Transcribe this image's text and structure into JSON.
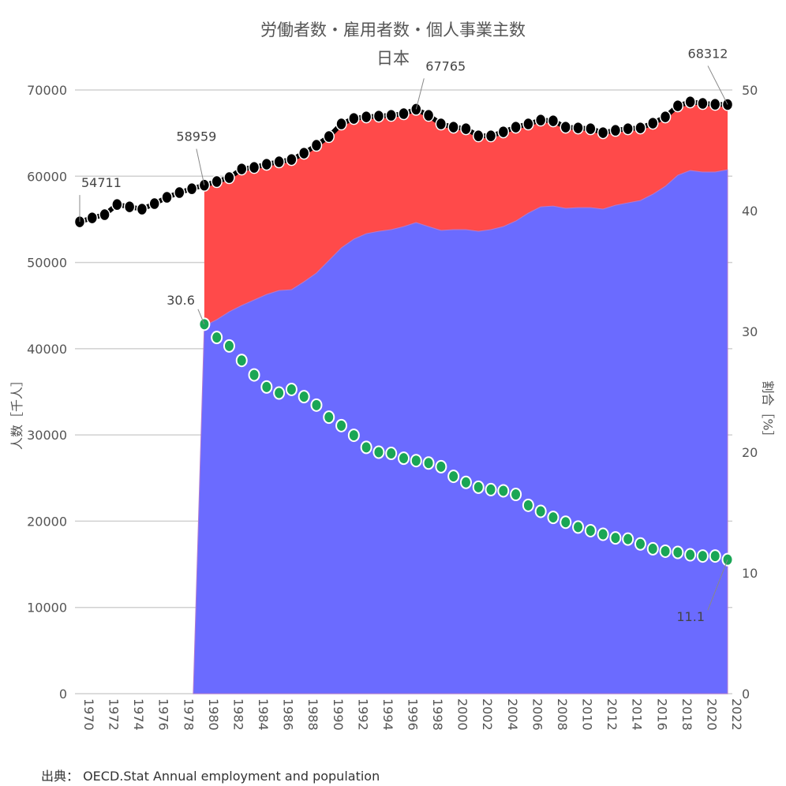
{
  "title": "労働者数・雇用者数・個人事業主数",
  "subtitle": "日本",
  "source": "出典： OECD.Stat Annual employment and population",
  "colors": {
    "employees_area": "#6b6bff",
    "self_employed_area": "#ff4a4a",
    "total_line": "#000000",
    "ratio_marker": "#1aa655"
  },
  "chart_data": {
    "type": "area",
    "x": [
      1970,
      1971,
      1972,
      1973,
      1974,
      1975,
      1976,
      1977,
      1978,
      1979,
      1980,
      1981,
      1982,
      1983,
      1984,
      1985,
      1986,
      1987,
      1988,
      1989,
      1990,
      1991,
      1992,
      1993,
      1994,
      1995,
      1996,
      1997,
      1998,
      1999,
      2000,
      2001,
      2002,
      2003,
      2004,
      2005,
      2006,
      2007,
      2008,
      2009,
      2010,
      2011,
      2012,
      2013,
      2014,
      2015,
      2016,
      2017,
      2018,
      2019,
      2020,
      2021,
      2022
    ],
    "xticks": [
      "1970",
      "1972",
      "1974",
      "1976",
      "1978",
      "1980",
      "1982",
      "1984",
      "1986",
      "1988",
      "1990",
      "1992",
      "1994",
      "1996",
      "1998",
      "2000",
      "2002",
      "2004",
      "2006",
      "2008",
      "2010",
      "2012",
      "2014",
      "2016",
      "2018",
      "2020",
      "2022"
    ],
    "ylabel_left": "人数［千人］",
    "ylabel_right": "割合［%］",
    "ylim_left": [
      0,
      70000
    ],
    "yticks_left": [
      "0",
      "10000",
      "20000",
      "30000",
      "40000",
      "50000",
      "60000",
      "70000"
    ],
    "ylim_right": [
      0,
      50
    ],
    "yticks_right": [
      "0",
      "10",
      "20",
      "30",
      "40",
      "50"
    ],
    "grid": true,
    "series": [
      {
        "role": "total",
        "axis": "left",
        "values": [
          54711,
          55170,
          55540,
          56720,
          56450,
          56180,
          56820,
          57550,
          58100,
          58550,
          58959,
          59380,
          59840,
          60840,
          61020,
          61390,
          61670,
          61940,
          62670,
          63590,
          64600,
          66060,
          66700,
          66880,
          66970,
          67060,
          67250,
          67765,
          67060,
          66060,
          65690,
          65510,
          64680,
          64680,
          65140,
          65690,
          66060,
          66510,
          66420,
          65690,
          65600,
          65510,
          65050,
          65320,
          65510,
          65600,
          66150,
          66880,
          68160,
          68620,
          68440,
          68340,
          68312
        ]
      },
      {
        "role": "employees",
        "axis": "left",
        "values": [
          null,
          null,
          null,
          null,
          null,
          null,
          null,
          null,
          null,
          null,
          42630,
          43370,
          44280,
          45010,
          45650,
          46290,
          46750,
          46840,
          47760,
          48770,
          50230,
          51690,
          52700,
          53340,
          53610,
          53800,
          54160,
          54620,
          54160,
          53710,
          53800,
          53800,
          53610,
          53800,
          54160,
          54800,
          55720,
          56450,
          56540,
          56270,
          56360,
          56360,
          56180,
          56630,
          56910,
          57180,
          57910,
          58830,
          60110,
          60660,
          60480,
          60480,
          60750
        ]
      },
      {
        "role": "self_employed_ratio",
        "axis": "right",
        "values": [
          null,
          null,
          null,
          null,
          null,
          null,
          null,
          null,
          null,
          null,
          30.6,
          29.5,
          28.8,
          27.6,
          26.4,
          25.4,
          24.9,
          25.2,
          24.6,
          23.9,
          22.9,
          22.2,
          21.4,
          20.4,
          20.0,
          19.9,
          19.5,
          19.3,
          19.1,
          18.8,
          18.0,
          17.5,
          17.1,
          16.9,
          16.8,
          16.5,
          15.6,
          15.1,
          14.6,
          14.2,
          13.8,
          13.5,
          13.2,
          12.9,
          12.8,
          12.4,
          12.0,
          11.8,
          11.7,
          11.5,
          11.4,
          11.4,
          11.1
        ]
      }
    ],
    "annotations": [
      {
        "year": 1970,
        "series": "total",
        "label": "54711"
      },
      {
        "year": 1980,
        "series": "total",
        "label": "58959"
      },
      {
        "year": 1997,
        "series": "total",
        "label": "67765"
      },
      {
        "year": 2022,
        "series": "total",
        "label": "68312"
      },
      {
        "year": 1980,
        "series": "self_employed_ratio",
        "label": "30.6"
      },
      {
        "year": 2022,
        "series": "self_employed_ratio",
        "label": "11.1"
      }
    ]
  }
}
